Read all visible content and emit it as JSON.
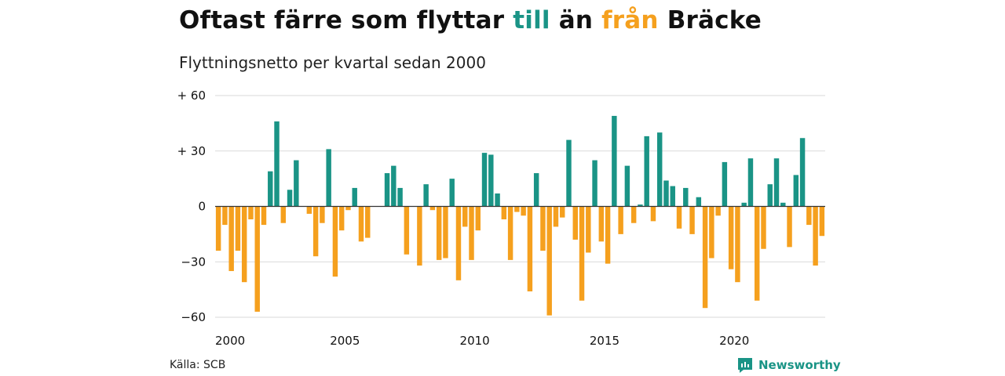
{
  "title": {
    "part1": "Oftast färre som flyttar ",
    "highlight_pos": "till",
    "part2": " än ",
    "highlight_neg": "från",
    "part3": " Bräcke"
  },
  "subtitle": "Flyttningsnetto per kvartal sedan 2000",
  "source": "Källa: SCB",
  "brand": "Newsworthy",
  "colors": {
    "positive": "#1a9486",
    "negative": "#f5a01e",
    "grid": "#d9d9d9",
    "zero_line": "#333333",
    "brand": "#1a9486"
  },
  "chart_data": {
    "type": "bar",
    "x_start": "2000 Q1",
    "y_ticks": [
      60,
      30,
      0,
      -30,
      -60
    ],
    "y_tick_labels": [
      "+ 60",
      "+ 30",
      "0",
      "−30",
      "−60"
    ],
    "x_tick_labels": [
      "2000",
      "2005",
      "2010",
      "2015",
      "2020"
    ],
    "ylim": [
      -60,
      60
    ],
    "grid": true,
    "values": [
      -24,
      -10,
      -35,
      -24,
      -41,
      -7,
      -57,
      -10,
      19,
      46,
      -9,
      9,
      25,
      0,
      -4,
      -27,
      -9,
      31,
      -38,
      -13,
      -2,
      10,
      -19,
      -17,
      0,
      0,
      18,
      22,
      10,
      -26,
      0,
      -32,
      12,
      -2,
      -29,
      -28,
      15,
      -40,
      -11,
      -29,
      -13,
      29,
      28,
      7,
      -7,
      -29,
      -3,
      -5,
      -46,
      18,
      -24,
      -59,
      -11,
      -6,
      36,
      -18,
      -51,
      -25,
      25,
      -19,
      -31,
      49,
      -15,
      22,
      -9,
      1,
      38,
      -8,
      40,
      14,
      11,
      -12,
      10,
      -15,
      5,
      -55,
      -28,
      -5,
      24,
      -34,
      -41,
      2,
      26,
      -51,
      -23,
      12,
      26,
      2,
      -22,
      17,
      37,
      -10,
      -32,
      -16
    ]
  }
}
